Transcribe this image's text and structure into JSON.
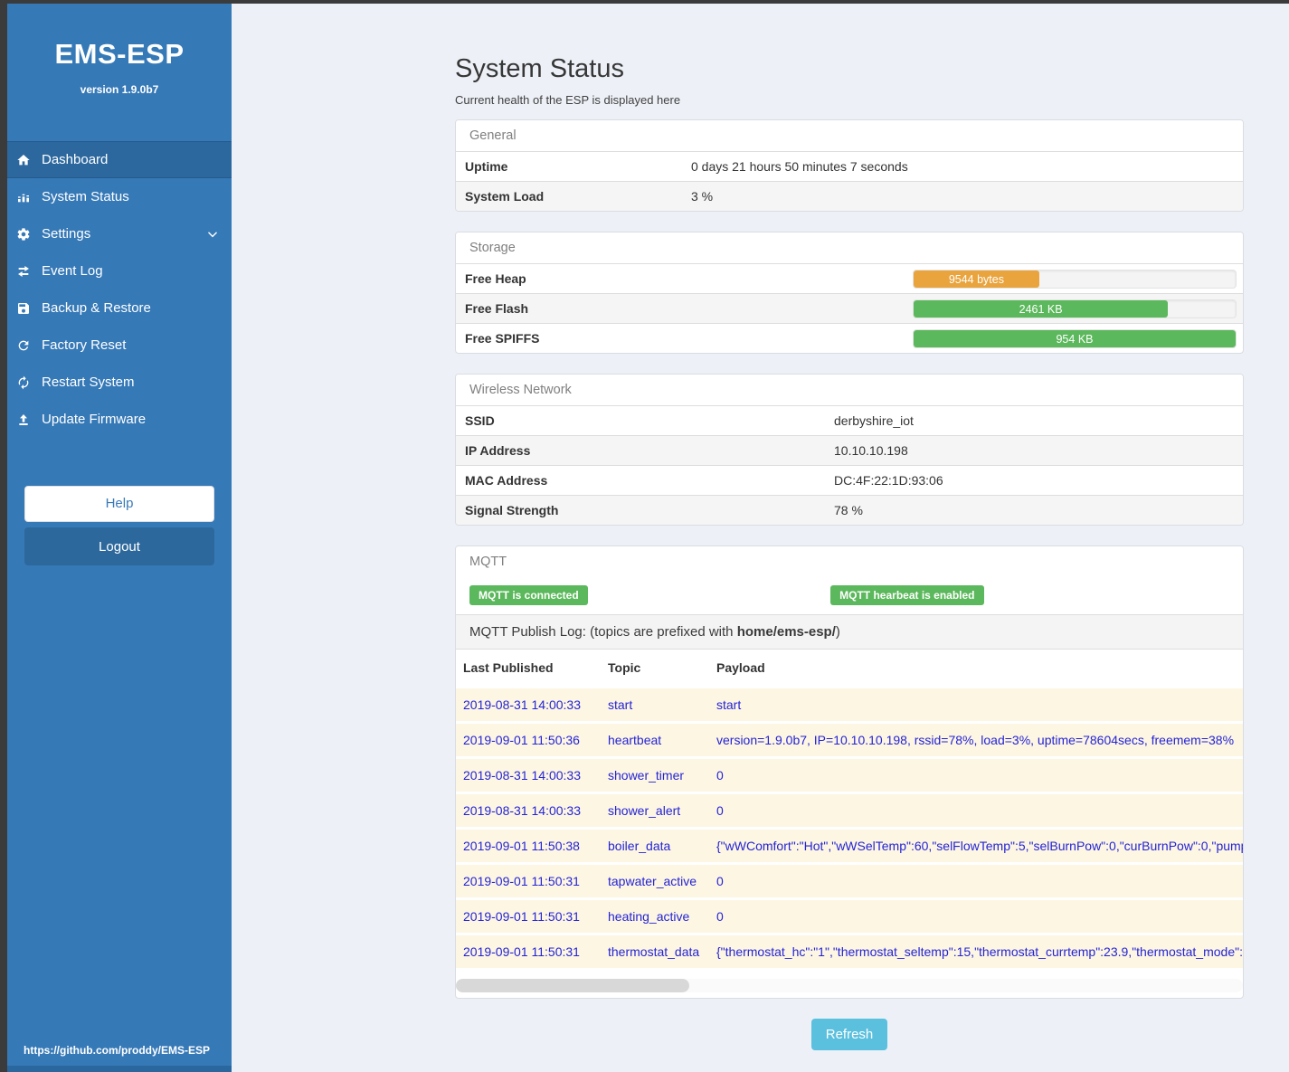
{
  "sidebar": {
    "title": "EMS-ESP",
    "version": "version 1.9.0b7",
    "items": [
      {
        "label": "Dashboard",
        "icon": "home",
        "active": true
      },
      {
        "label": "System Status",
        "icon": "chart"
      },
      {
        "label": "Settings",
        "icon": "gear",
        "chevron": true
      },
      {
        "label": "Event Log",
        "icon": "exchange"
      },
      {
        "label": "Backup & Restore",
        "icon": "save"
      },
      {
        "label": "Factory Reset",
        "icon": "reset"
      },
      {
        "label": "Restart System",
        "icon": "sync"
      },
      {
        "label": "Update Firmware",
        "icon": "upload"
      }
    ],
    "help_label": "Help",
    "logout_label": "Logout",
    "footer_link": "https://github.com/proddy/EMS-ESP"
  },
  "page": {
    "title": "System Status",
    "subtitle": "Current health of the ESP is displayed here"
  },
  "panels": {
    "general": {
      "title": "General",
      "rows": [
        {
          "label": "Uptime",
          "value": "0 days 21 hours 50 minutes 7 seconds"
        },
        {
          "label": "System Load",
          "value": "3 %"
        }
      ]
    },
    "storage": {
      "title": "Storage",
      "rows": [
        {
          "label": "Free Heap",
          "value": "9544 bytes",
          "percent": 39,
          "color": "#e9a43e"
        },
        {
          "label": "Free Flash",
          "value": "2461 KB",
          "percent": 79,
          "color": "#5cb85c"
        },
        {
          "label": "Free SPIFFS",
          "value": "954 KB",
          "percent": 100,
          "color": "#5cb85c"
        }
      ]
    },
    "wireless": {
      "title": "Wireless Network",
      "rows": [
        {
          "label": "SSID",
          "value": "derbyshire_iot"
        },
        {
          "label": "IP Address",
          "value": "10.10.10.198"
        },
        {
          "label": "MAC Address",
          "value": "DC:4F:22:1D:93:06"
        },
        {
          "label": "Signal Strength",
          "value": "78 %"
        }
      ]
    },
    "mqtt": {
      "title": "MQTT",
      "badges": [
        {
          "label": "MQTT is connected"
        },
        {
          "label": "MQTT hearbeat is enabled"
        }
      ],
      "log_label_prefix": "MQTT Publish Log: (topics are prefixed with ",
      "log_label_bold": "home/ems-esp/",
      "log_label_suffix": ")",
      "table": {
        "headers": [
          "Last Published",
          "Topic",
          "Payload"
        ],
        "rows": [
          [
            "2019-08-31 14:00:33",
            "start",
            "start"
          ],
          [
            "2019-09-01 11:50:36",
            "heartbeat",
            "version=1.9.0b7, IP=10.10.10.198, rssid=78%, load=3%, uptime=78604secs, freemem=38%"
          ],
          [
            "2019-08-31 14:00:33",
            "shower_timer",
            "0"
          ],
          [
            "2019-08-31 14:00:33",
            "shower_alert",
            "0"
          ],
          [
            "2019-09-01 11:50:38",
            "boiler_data",
            "{\"wWComfort\":\"Hot\",\"wWSelTemp\":60,\"selFlowTemp\":5,\"selBurnPow\":0,\"curBurnPow\":0,\"pump"
          ],
          [
            "2019-09-01 11:50:31",
            "tapwater_active",
            "0"
          ],
          [
            "2019-09-01 11:50:31",
            "heating_active",
            "0"
          ],
          [
            "2019-09-01 11:50:31",
            "thermostat_data",
            "{\"thermostat_hc\":\"1\",\"thermostat_seltemp\":15,\"thermostat_currtemp\":23.9,\"thermostat_mode\":\""
          ]
        ]
      }
    }
  },
  "refresh_label": "Refresh",
  "colors": {
    "success": "#5cb85c",
    "warning": "#e9a43e",
    "info": "#5bc0de",
    "sidebar": "#3679b7",
    "link_text": "#2424d6"
  }
}
